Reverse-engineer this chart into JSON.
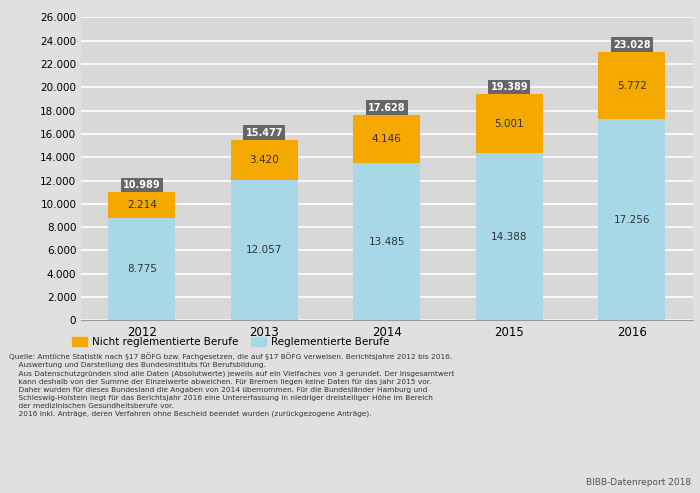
{
  "years": [
    "2012",
    "2013",
    "2014",
    "2015",
    "2016"
  ],
  "reglementiert": [
    8775,
    12057,
    13485,
    14388,
    17256
  ],
  "nicht_reglementiert": [
    2214,
    3420,
    4146,
    5001,
    5772
  ],
  "color_nicht_regl": "#F5A800",
  "color_regl": "#A8D8E8",
  "color_total_label_bg": "#666666",
  "bar_labels_nicht_regl": [
    "2.214",
    "3.420",
    "4.146",
    "5.001",
    "5.772"
  ],
  "bar_labels_regl": [
    "8.775",
    "12.057",
    "13.485",
    "14.388",
    "17.256"
  ],
  "bar_labels_total": [
    "10.989",
    "15.477",
    "17.628",
    "19.389",
    "23.028"
  ],
  "ylim": [
    0,
    26000
  ],
  "yticks": [
    0,
    2000,
    4000,
    6000,
    8000,
    10000,
    12000,
    14000,
    16000,
    18000,
    20000,
    22000,
    24000,
    26000
  ],
  "ytick_labels": [
    "0",
    "2.000",
    "4.000",
    "6.000",
    "8.000",
    "10.000",
    "12.000",
    "14.000",
    "16.000",
    "18.000",
    "20.000",
    "22.000",
    "24.000",
    "26.000"
  ],
  "legend_nicht_regl": "Nicht reglementierte Berufe",
  "legend_regl": "Reglementierte Berufe",
  "source_line1": "Quelle: Amtliche Statistik nach §17 BÖFG bzw. Fachgesetzen, die auf §17 BÖFG verweisen. Berichtsjahre 2012 bis 2016.",
  "source_line2": "    Auswertung und Darstellung des Bundesinstituts für Berufsbildung.",
  "source_line3": "    Aus Datenschutzgründen sind alle Daten (Absolutwerte) jeweils auf ein Vielfaches von 3 gerundet. Der Insgesamtwert",
  "source_line4": "    kann deshalb von der Summe der Einzelwerte abweichen. Für Bremen liegen keine Daten für das Jahr 2015 vor.",
  "source_line5": "    Daher wurden für dieses Bundesland die Angaben von 2014 übernommen. Für die Bundesländer Hamburg und",
  "source_line6": "    Schleswig-Holstein liegt für das Berichtsjahr 2016 eine Untererfassung in niedriger dreistelliger Höhe im Bereich",
  "source_line7": "    der medizinischen Gesundheitsberufe vor.",
  "source_line8": "    2016 inkl. Anträge, deren Verfahren ohne Bescheid beendet wurden (zurückgezogene Anträge).",
  "bibb_text": "BIBB-Datenreport 2018",
  "background_color": "#e0e0e0",
  "plot_bg_color": "#d8d8d8",
  "grid_color": "#c0c0c0"
}
